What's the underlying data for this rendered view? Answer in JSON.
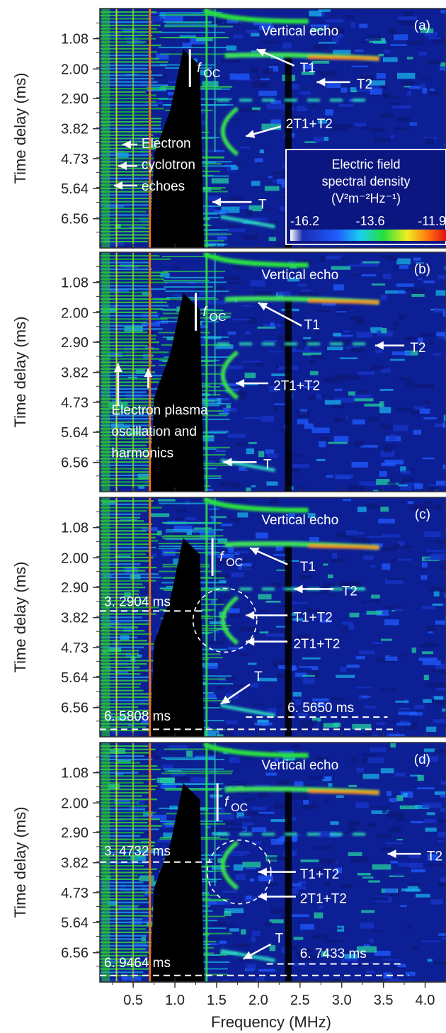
{
  "chart_data": {
    "type": "heatmap",
    "xlabel": "Frequency (MHz)",
    "ylabel": "Time delay (ms)",
    "xlim": [
      0.1,
      4.25
    ],
    "ylim": [
      0.16,
      7.45
    ],
    "x_ticks": [
      0.5,
      1.0,
      1.5,
      2.0,
      2.5,
      3.0,
      3.5,
      4.0
    ],
    "x_tick_labels": [
      "0.5",
      "1.0",
      "1.5",
      "2.0",
      "2.5",
      "3.0",
      "3.5",
      "4.0"
    ],
    "y_ticks": [
      1.08,
      2.0,
      2.9,
      3.82,
      4.73,
      5.64,
      6.56
    ],
    "y_tick_labels": [
      "1.08",
      "2.00",
      "2.90",
      "3.82",
      "4.73",
      "5.64",
      "6.56"
    ],
    "colorbar": {
      "title_line1": "Electric field",
      "title_line2": "spectral density",
      "units": "(V²m⁻²Hz⁻¹)",
      "min": -16.2,
      "mid": -13.6,
      "max": -11.9,
      "labels": [
        "-16.2",
        "-13.6",
        "-11.9"
      ]
    },
    "panels": [
      {
        "label": "(a)",
        "annotations": [
          {
            "text": "Vertical echo"
          },
          {
            "text": "T1"
          },
          {
            "text": "T2"
          },
          {
            "text": "2T1+T2"
          },
          {
            "text": "T"
          },
          {
            "text": "Electron"
          },
          {
            "text": "cyclotron"
          },
          {
            "text": "echoes"
          }
        ],
        "foc": "f",
        "foc_sub": "OC",
        "markers": []
      },
      {
        "label": "(b)",
        "annotations": [
          {
            "text": "Vertical echo"
          },
          {
            "text": "T1"
          },
          {
            "text": "T2"
          },
          {
            "text": "2T1+T2"
          },
          {
            "text": "T"
          },
          {
            "text": "Electron plasma"
          },
          {
            "text": "oscillation and"
          },
          {
            "text": "harmonics"
          }
        ],
        "foc": "f",
        "foc_sub": "OC",
        "markers": []
      },
      {
        "label": "(c)",
        "annotations": [
          {
            "text": "Vertical echo"
          },
          {
            "text": "T1"
          },
          {
            "text": "T2"
          },
          {
            "text": "T1+T2"
          },
          {
            "text": "2T1+T2"
          },
          {
            "text": "T"
          }
        ],
        "foc": "f",
        "foc_sub": "OC",
        "markers": [
          "3. 2904  ms",
          "6. 5808  ms",
          "6. 5650  ms"
        ]
      },
      {
        "label": "(d)",
        "annotations": [
          {
            "text": "Vertical echo"
          },
          {
            "text": "T2"
          },
          {
            "text": "T1+T2"
          },
          {
            "text": "2T1+T2"
          },
          {
            "text": "T"
          }
        ],
        "foc": "f",
        "foc_sub": "OC",
        "markers": [
          "3. 4732  ms",
          "6. 9464  ms",
          "6. 7433  ms"
        ]
      }
    ]
  }
}
